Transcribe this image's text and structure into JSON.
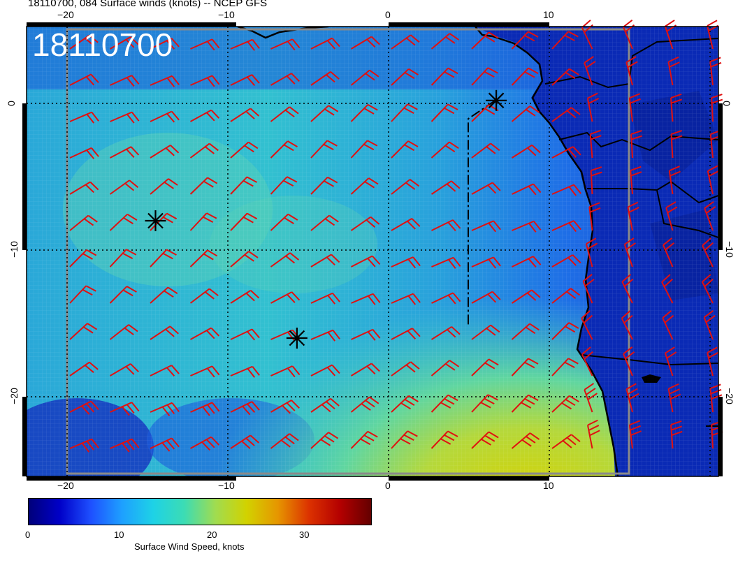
{
  "title": "18110700, 084 Surface winds (knots) -- NCEP GFS",
  "timestamp_stamp": "18110700",
  "map": {
    "lon_range": [
      -22.5,
      20.5
    ],
    "lat_range": [
      -25.5,
      5.0
    ],
    "top_lon_ticks": [
      "−20",
      "−10",
      "0",
      "10"
    ],
    "bottom_lon_ticks": [
      "−20",
      "−10",
      "0",
      "10"
    ],
    "left_lat_ticks": [
      "0",
      "−10",
      "−20"
    ],
    "right_lat_ticks": [
      "0",
      "−10",
      "−20"
    ],
    "markers": [
      {
        "name": "storm-center-marker-1",
        "lon": -14.5,
        "lat": -8.0
      },
      {
        "name": "storm-center-marker-2",
        "lon": -5.7,
        "lat": -16.0
      },
      {
        "name": "storm-center-marker-3",
        "lon": 6.7,
        "lat": 0.2
      }
    ],
    "barb_color": "#e01010",
    "coast_color": "#000000",
    "land_color": "#0a2ab5"
  },
  "colorbar": {
    "title": "Surface Wind Speed, knots",
    "tick_labels": [
      "0",
      "10",
      "20",
      "30"
    ],
    "min": 0,
    "max": 37,
    "colors": [
      "#00007a",
      "#0000c8",
      "#1e50ff",
      "#1ea0ff",
      "#1ed2e6",
      "#3cdcb4",
      "#a0dc50",
      "#d2d200",
      "#e69600",
      "#dc3200",
      "#b40000",
      "#640000"
    ]
  }
}
